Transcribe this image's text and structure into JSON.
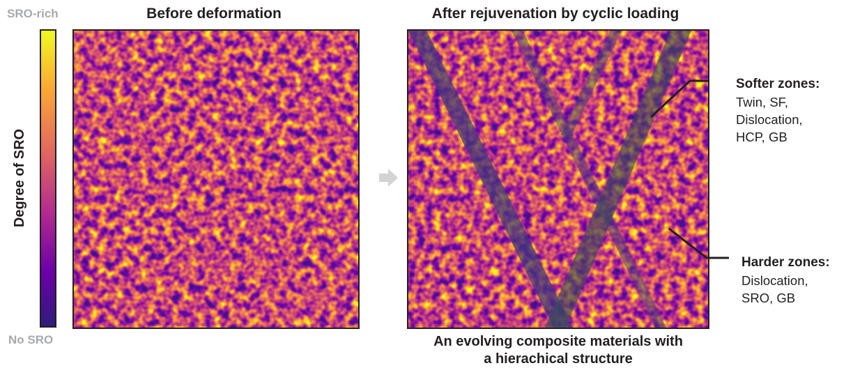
{
  "colorbar": {
    "top_label": "SRO-rich",
    "bottom_label": "No SRO",
    "axis_label": "Degree of SRO",
    "colors": [
      "#f0f921",
      "#fca636",
      "#e16462",
      "#b12a90",
      "#6a00a8",
      "#2d1d7a"
    ]
  },
  "panels": {
    "before": {
      "title": "Before deformation"
    },
    "after": {
      "title": "After rejuvenation by cyclic loading"
    }
  },
  "arrow": {
    "color": "#d1d3d4",
    "icon": "right-arrow-icon"
  },
  "annotations": {
    "softer": {
      "title": "Softer zones:",
      "lines": [
        "Twin, SF,",
        "Dislocation,",
        "HCP, GB"
      ]
    },
    "harder": {
      "title": "Harder zones:",
      "lines": [
        "Dislocation,",
        "SRO, GB"
      ]
    }
  },
  "caption": {
    "lines": [
      "An evolving composite materials with",
      "a hierachical structure"
    ]
  },
  "band_color": "#3d3a78"
}
